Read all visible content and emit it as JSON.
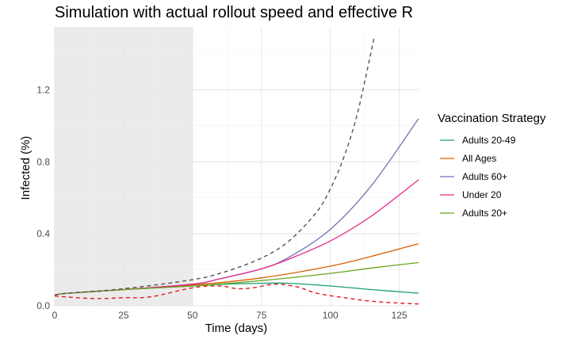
{
  "chart_data": {
    "type": "line",
    "title": "Simulation with actual rollout speed and effective R",
    "xlabel": "Time (days)",
    "ylabel": "Infected (%)",
    "xlim": [
      0,
      132
    ],
    "ylim": [
      0,
      1.55
    ],
    "x_ticks": [
      0,
      25,
      50,
      75,
      100,
      125
    ],
    "y_ticks": [
      0.0,
      0.4,
      0.8,
      1.2
    ],
    "x_tick_labels": [
      "0",
      "25",
      "50",
      "75",
      "100",
      "125"
    ],
    "y_tick_labels": [
      "0.0",
      "0.4",
      "0.8",
      "1.2"
    ],
    "grid": true,
    "shaded_region": {
      "x0": 0,
      "x1": 50,
      "color": "#ebebeb"
    },
    "legend": {
      "title": "Vaccination Strategy",
      "position": "right",
      "entries": [
        "Adults 20-49",
        "All Ages",
        "Adults 60+",
        "Under 20",
        "Adults 20+"
      ]
    },
    "series": [
      {
        "name": "Adults 20-49",
        "color": "#1b9e77",
        "style": "solid",
        "x": [
          0,
          5,
          25,
          50,
          62,
          75,
          85,
          100,
          115,
          132
        ],
        "y": [
          0.06,
          0.07,
          0.09,
          0.11,
          0.12,
          0.125,
          0.125,
          0.11,
          0.09,
          0.07
        ]
      },
      {
        "name": "All Ages",
        "color": "#d95f02",
        "style": "solid",
        "x": [
          0,
          5,
          25,
          50,
          75,
          100,
          115,
          132
        ],
        "y": [
          0.06,
          0.07,
          0.09,
          0.115,
          0.155,
          0.22,
          0.275,
          0.345
        ]
      },
      {
        "name": "Adults 60+",
        "color": "#7570b3",
        "style": "solid",
        "x": [
          0,
          5,
          25,
          50,
          60,
          75,
          85,
          100,
          115,
          132
        ],
        "y": [
          0.06,
          0.07,
          0.09,
          0.12,
          0.15,
          0.205,
          0.27,
          0.425,
          0.67,
          1.04
        ]
      },
      {
        "name": "Under 20",
        "color": "#e7298a",
        "style": "solid",
        "x": [
          0,
          5,
          25,
          50,
          60,
          75,
          85,
          100,
          115,
          132
        ],
        "y": [
          0.06,
          0.07,
          0.09,
          0.12,
          0.15,
          0.205,
          0.26,
          0.36,
          0.5,
          0.7
        ]
      },
      {
        "name": "Adults 20+",
        "color": "#66a61e",
        "style": "solid",
        "x": [
          0,
          5,
          25,
          50,
          75,
          100,
          115,
          132
        ],
        "y": [
          0.06,
          0.07,
          0.09,
          0.11,
          0.14,
          0.18,
          0.21,
          0.24
        ]
      },
      {
        "color": "#555555",
        "style": "dashed",
        "x": [
          0,
          5,
          25,
          50,
          62,
          75,
          85,
          95,
          100,
          105,
          110,
          116
        ],
        "y": [
          0.06,
          0.07,
          0.095,
          0.145,
          0.19,
          0.265,
          0.36,
          0.52,
          0.65,
          0.83,
          1.08,
          1.5
        ]
      },
      {
        "color": "#e41a1c",
        "style": "dashed",
        "x": [
          0,
          3,
          15,
          25,
          35,
          50,
          60,
          66,
          72,
          80,
          88,
          95,
          105,
          115,
          125,
          132
        ],
        "y": [
          0.055,
          0.05,
          0.04,
          0.045,
          0.05,
          0.1,
          0.11,
          0.095,
          0.1,
          0.12,
          0.105,
          0.07,
          0.045,
          0.025,
          0.015,
          0.01
        ]
      }
    ]
  }
}
